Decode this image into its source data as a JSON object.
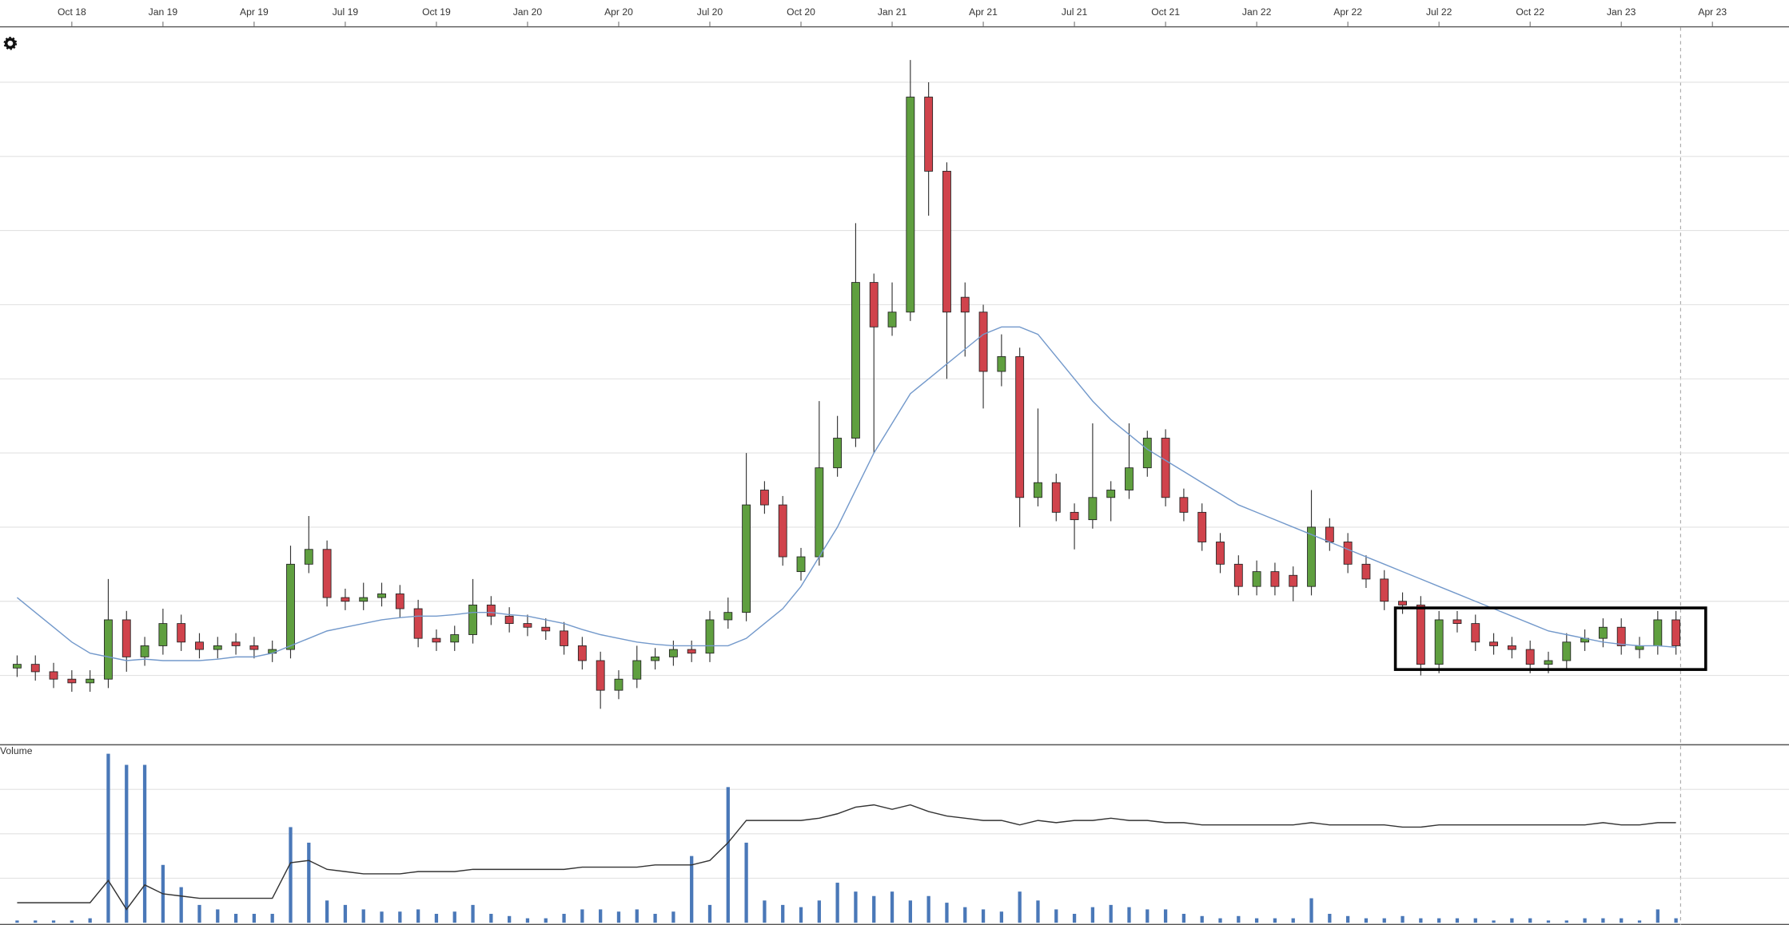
{
  "chart_data": [
    {
      "type": "candlestick",
      "x": [
        2018.6,
        2018.65,
        2018.7,
        2018.75,
        2018.8,
        2018.85,
        2018.9,
        2018.95,
        2019.0,
        2019.05,
        2019.1,
        2019.15,
        2019.2,
        2019.25,
        2019.3,
        2019.35,
        2019.4,
        2019.45,
        2019.5,
        2019.55,
        2019.6,
        2019.65,
        2019.7,
        2019.75,
        2019.8,
        2019.85,
        2019.9,
        2019.95,
        2020.0,
        2020.05,
        2020.1,
        2020.15,
        2020.2,
        2020.25,
        2020.3,
        2020.35,
        2020.4,
        2020.45,
        2020.5,
        2020.55,
        2020.6,
        2020.65,
        2020.7,
        2020.75,
        2020.8,
        2020.85,
        2020.9,
        2020.95,
        2021.0,
        2021.05,
        2021.1,
        2021.15,
        2021.2,
        2021.25,
        2021.3,
        2021.35,
        2021.4,
        2021.45,
        2021.5,
        2021.55,
        2021.6,
        2021.65,
        2021.7,
        2021.75,
        2021.8,
        2021.85,
        2021.9,
        2021.95,
        2022.0,
        2022.05,
        2022.1,
        2022.15,
        2022.2,
        2022.25,
        2022.3,
        2022.35,
        2022.4,
        2022.45,
        2022.5,
        2022.55,
        2022.6,
        2022.65,
        2022.7,
        2022.75,
        2022.8,
        2022.85,
        2022.9,
        2022.95,
        2023.0,
        2023.05,
        2023.1,
        2023.15
      ],
      "open": [
        1.1,
        1.15,
        1.05,
        0.95,
        0.9,
        0.95,
        1.75,
        1.25,
        1.4,
        1.7,
        1.45,
        1.35,
        1.45,
        1.4,
        1.3,
        1.35,
        2.5,
        2.7,
        2.05,
        2.0,
        2.05,
        2.1,
        1.9,
        1.5,
        1.45,
        1.55,
        1.95,
        1.8,
        1.7,
        1.65,
        1.6,
        1.4,
        1.2,
        0.8,
        0.95,
        1.2,
        1.25,
        1.35,
        1.3,
        1.75,
        1.85,
        3.5,
        3.3,
        2.4,
        2.6,
        3.8,
        4.2,
        6.3,
        5.7,
        5.9,
        8.8,
        7.8,
        6.1,
        5.9,
        5.1,
        5.3,
        3.4,
        3.6,
        3.2,
        3.1,
        3.4,
        3.5,
        3.8,
        4.2,
        3.4,
        3.2,
        2.8,
        2.5,
        2.2,
        2.4,
        2.35,
        2.2,
        3.0,
        2.8,
        2.5,
        2.3,
        2.0,
        1.95,
        1.15,
        1.75,
        1.7,
        1.45,
        1.4,
        1.35,
        1.15,
        1.2,
        1.45,
        1.5,
        1.65,
        1.35,
        1.4,
        1.75
      ],
      "high": [
        1.27,
        1.27,
        1.17,
        1.07,
        1.07,
        2.3,
        1.87,
        1.52,
        1.9,
        1.82,
        1.57,
        1.52,
        1.57,
        1.52,
        1.47,
        2.75,
        3.15,
        2.82,
        2.17,
        2.25,
        2.25,
        2.22,
        2.02,
        1.62,
        1.67,
        2.3,
        2.07,
        1.92,
        1.82,
        1.77,
        1.72,
        1.52,
        1.32,
        1.07,
        1.4,
        1.37,
        1.47,
        1.47,
        1.87,
        2.05,
        4.0,
        3.62,
        3.42,
        2.72,
        4.7,
        4.5,
        7.1,
        6.42,
        6.3,
        9.3,
        9.0,
        7.92,
        6.3,
        6.0,
        5.6,
        5.42,
        4.6,
        3.72,
        3.32,
        4.4,
        3.62,
        4.4,
        4.3,
        4.32,
        3.52,
        3.32,
        2.92,
        2.62,
        2.55,
        2.52,
        2.47,
        3.5,
        3.12,
        2.92,
        2.62,
        2.42,
        2.12,
        2.07,
        1.87,
        1.87,
        1.82,
        1.57,
        1.52,
        1.47,
        1.32,
        1.57,
        1.62,
        1.77,
        1.77,
        1.52,
        1.87,
        1.87
      ],
      "low": [
        0.98,
        0.93,
        0.83,
        0.78,
        0.78,
        0.83,
        1.05,
        1.13,
        1.28,
        1.33,
        1.23,
        1.23,
        1.28,
        1.23,
        1.18,
        1.23,
        2.38,
        1.93,
        1.88,
        1.88,
        1.93,
        1.78,
        1.38,
        1.33,
        1.33,
        1.43,
        1.68,
        1.58,
        1.53,
        1.48,
        1.28,
        1.08,
        0.55,
        0.68,
        0.83,
        1.08,
        1.13,
        1.18,
        1.18,
        1.63,
        1.73,
        3.18,
        2.48,
        2.28,
        2.48,
        3.68,
        4.08,
        4.0,
        5.58,
        5.78,
        7.2,
        5.0,
        5.3,
        4.6,
        4.9,
        3.0,
        3.28,
        3.08,
        2.7,
        2.98,
        3.08,
        3.38,
        3.68,
        3.28,
        3.08,
        2.68,
        2.38,
        2.08,
        2.08,
        2.08,
        2.0,
        2.08,
        2.68,
        2.38,
        2.18,
        1.88,
        1.83,
        1.0,
        1.03,
        1.58,
        1.33,
        1.28,
        1.23,
        1.03,
        1.03,
        1.08,
        1.33,
        1.38,
        1.28,
        1.23,
        1.28,
        1.28
      ],
      "close": [
        1.15,
        1.05,
        0.95,
        0.9,
        0.95,
        1.75,
        1.25,
        1.4,
        1.7,
        1.45,
        1.35,
        1.4,
        1.4,
        1.35,
        1.35,
        2.5,
        2.7,
        2.05,
        2.0,
        2.05,
        2.1,
        1.9,
        1.5,
        1.45,
        1.55,
        1.95,
        1.8,
        1.7,
        1.65,
        1.6,
        1.4,
        1.2,
        0.8,
        0.95,
        1.2,
        1.25,
        1.35,
        1.3,
        1.75,
        1.85,
        3.3,
        3.3,
        2.6,
        2.6,
        3.8,
        4.2,
        6.3,
        5.7,
        5.9,
        8.8,
        7.8,
        5.9,
        5.9,
        5.1,
        5.3,
        3.4,
        3.6,
        3.2,
        3.1,
        3.4,
        3.5,
        3.8,
        4.2,
        3.4,
        3.2,
        2.8,
        2.5,
        2.2,
        2.4,
        2.2,
        2.2,
        3.0,
        2.8,
        2.5,
        2.3,
        2.0,
        1.95,
        1.15,
        1.75,
        1.7,
        1.45,
        1.4,
        1.35,
        1.15,
        1.2,
        1.45,
        1.5,
        1.65,
        1.4,
        1.4,
        1.75,
        1.4
      ],
      "up_color": "#5f9f3f",
      "down_color": "#d0434c",
      "overlay": {
        "color": "#7399cb",
        "values": [
          2.05,
          1.85,
          1.65,
          1.45,
          1.3,
          1.25,
          1.2,
          1.22,
          1.2,
          1.2,
          1.2,
          1.22,
          1.25,
          1.25,
          1.3,
          1.4,
          1.5,
          1.6,
          1.65,
          1.7,
          1.75,
          1.78,
          1.8,
          1.8,
          1.82,
          1.85,
          1.85,
          1.82,
          1.8,
          1.75,
          1.7,
          1.62,
          1.55,
          1.5,
          1.45,
          1.42,
          1.4,
          1.4,
          1.4,
          1.4,
          1.5,
          1.7,
          1.9,
          2.2,
          2.6,
          3.0,
          3.5,
          4.0,
          4.4,
          4.8,
          5.0,
          5.2,
          5.4,
          5.6,
          5.7,
          5.7,
          5.6,
          5.3,
          5.0,
          4.7,
          4.45,
          4.25,
          4.05,
          3.9,
          3.75,
          3.6,
          3.45,
          3.3,
          3.2,
          3.1,
          3.0,
          2.9,
          2.8,
          2.7,
          2.6,
          2.5,
          2.4,
          2.3,
          2.2,
          2.1,
          2.0,
          1.9,
          1.8,
          1.7,
          1.6,
          1.55,
          1.5,
          1.45,
          1.42,
          1.4,
          1.4,
          1.38
        ]
      },
      "xlim": [
        2018.553,
        2023.46
      ],
      "xticks": [
        {
          "value": 2018.75,
          "label": "Oct 18"
        },
        {
          "value": 2019.0,
          "label": "Jan 19"
        },
        {
          "value": 2019.25,
          "label": "Apr 19"
        },
        {
          "value": 2019.5,
          "label": "Jul 19"
        },
        {
          "value": 2019.75,
          "label": "Oct 19"
        },
        {
          "value": 2020.0,
          "label": "Jan 20"
        },
        {
          "value": 2020.25,
          "label": "Apr 20"
        },
        {
          "value": 2020.5,
          "label": "Jul 20"
        },
        {
          "value": 2020.75,
          "label": "Oct 20"
        },
        {
          "value": 2021.0,
          "label": "Jan 21"
        },
        {
          "value": 2021.25,
          "label": "Apr 21"
        },
        {
          "value": 2021.5,
          "label": "Jul 21"
        },
        {
          "value": 2021.75,
          "label": "Oct 21"
        },
        {
          "value": 2022.0,
          "label": "Jan 22"
        },
        {
          "value": 2022.25,
          "label": "Apr 22"
        },
        {
          "value": 2022.5,
          "label": "Jul 22"
        },
        {
          "value": 2022.75,
          "label": "Oct 22"
        },
        {
          "value": 2023.0,
          "label": "Jan 23"
        },
        {
          "value": 2023.25,
          "label": "Apr 23"
        }
      ],
      "ylim": [
        0.08,
        9.74
      ],
      "yticks": [
        1,
        2,
        3,
        4,
        5,
        6,
        7,
        8,
        9
      ],
      "grid": true
    },
    {
      "type": "volume",
      "title": "Volume",
      "color": "#4a78b8",
      "values": [
        0.05,
        0.05,
        0.05,
        0.05,
        0.1,
        3.8,
        3.55,
        3.55,
        1.3,
        0.8,
        0.4,
        0.3,
        0.2,
        0.2,
        0.2,
        2.15,
        1.8,
        0.5,
        0.4,
        0.3,
        0.25,
        0.25,
        0.3,
        0.2,
        0.25,
        0.4,
        0.2,
        0.15,
        0.1,
        0.1,
        0.2,
        0.3,
        0.3,
        0.25,
        0.3,
        0.2,
        0.25,
        1.5,
        0.4,
        3.05,
        1.8,
        0.5,
        0.4,
        0.35,
        0.5,
        0.9,
        0.7,
        0.6,
        0.7,
        0.5,
        0.6,
        0.45,
        0.35,
        0.3,
        0.25,
        0.7,
        0.5,
        0.3,
        0.2,
        0.35,
        0.4,
        0.35,
        0.3,
        0.3,
        0.2,
        0.15,
        0.1,
        0.15,
        0.1,
        0.1,
        0.1,
        0.55,
        0.2,
        0.15,
        0.1,
        0.1,
        0.15,
        0.1,
        0.1,
        0.1,
        0.1,
        0.05,
        0.1,
        0.1,
        0.05,
        0.05,
        0.1,
        0.1,
        0.1,
        0.05,
        0.3,
        0.1
      ],
      "overlay": {
        "color": "#333333",
        "values": [
          0.45,
          0.45,
          0.45,
          0.45,
          0.45,
          0.95,
          0.3,
          0.85,
          0.65,
          0.6,
          0.55,
          0.55,
          0.55,
          0.55,
          0.55,
          1.35,
          1.4,
          1.2,
          1.15,
          1.1,
          1.1,
          1.1,
          1.15,
          1.15,
          1.15,
          1.2,
          1.2,
          1.2,
          1.2,
          1.2,
          1.2,
          1.25,
          1.25,
          1.25,
          1.25,
          1.3,
          1.3,
          1.3,
          1.4,
          1.8,
          2.3,
          2.3,
          2.3,
          2.3,
          2.35,
          2.45,
          2.6,
          2.65,
          2.55,
          2.65,
          2.5,
          2.4,
          2.35,
          2.3,
          2.3,
          2.2,
          2.3,
          2.25,
          2.3,
          2.3,
          2.35,
          2.3,
          2.3,
          2.25,
          2.25,
          2.2,
          2.2,
          2.2,
          2.2,
          2.2,
          2.2,
          2.25,
          2.2,
          2.2,
          2.2,
          2.2,
          2.15,
          2.15,
          2.2,
          2.2,
          2.2,
          2.2,
          2.2,
          2.2,
          2.2,
          2.2,
          2.2,
          2.25,
          2.2,
          2.2,
          2.25,
          2.25
        ]
      },
      "ylim": [
        0,
        3.95
      ],
      "yticks": [
        1,
        2,
        3
      ],
      "grid": true
    }
  ]
}
